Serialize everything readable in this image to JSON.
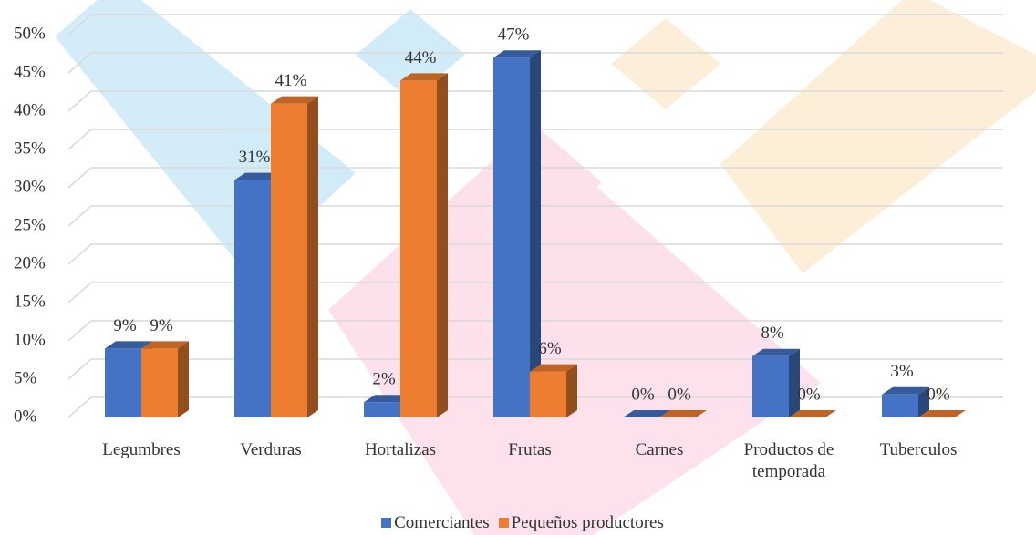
{
  "chart_data": {
    "type": "bar3d",
    "categories": [
      "Legumbres",
      "Verduras",
      "Hortalizas",
      "Frutas",
      "Carnes",
      "Productos de temporada",
      "Tuberculos"
    ],
    "series": [
      {
        "name": "Comerciantes",
        "color": "#4472c4",
        "values": [
          9,
          31,
          2,
          47,
          0,
          8,
          3
        ],
        "value_labels": [
          "9%",
          "31%",
          "2%",
          "47%",
          "0%",
          "8%",
          "3%"
        ]
      },
      {
        "name": "Pequeños productores",
        "color": "#ed7d31",
        "values": [
          9,
          41,
          44,
          6,
          0,
          0,
          0
        ],
        "value_labels": [
          "9%",
          "41%",
          "44%",
          "6%",
          "0%",
          "0%",
          "0%"
        ]
      }
    ],
    "ylim": [
      0,
      50
    ],
    "yticks": [
      {
        "value": 0,
        "label": "0%"
      },
      {
        "value": 5,
        "label": "5%"
      },
      {
        "value": 10,
        "label": "10%"
      },
      {
        "value": 15,
        "label": "15%"
      },
      {
        "value": 20,
        "label": "20%"
      },
      {
        "value": 25,
        "label": "25%"
      },
      {
        "value": 30,
        "label": "30%"
      },
      {
        "value": 35,
        "label": "35%"
      },
      {
        "value": 40,
        "label": "40%"
      },
      {
        "value": 45,
        "label": "45%"
      },
      {
        "value": 50,
        "label": "50%"
      }
    ],
    "grid": true,
    "legend": "bottom"
  }
}
